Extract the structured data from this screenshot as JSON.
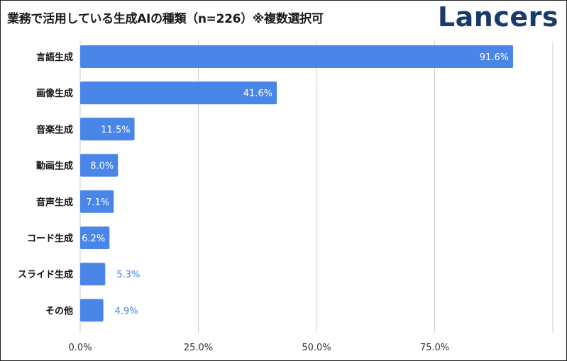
{
  "header": {
    "title": "業務で活用している生成AIの種類（n=226）※複数選択可",
    "logo_text": "Lancers"
  },
  "colors": {
    "bar": "#4a86e8",
    "grid": "#cccccc",
    "label_inside": "#ffffff",
    "label_outside": "#4a86e8",
    "logo": "#1a3a6b"
  },
  "chart_data": {
    "type": "bar",
    "orientation": "horizontal",
    "title": "業務で活用している生成AIの種類（n=226）※複数選択可",
    "categories": [
      "言語生成",
      "画像生成",
      "音楽生成",
      "動画生成",
      "音声生成",
      "コード生成",
      "スライド生成",
      "その他"
    ],
    "values": [
      91.6,
      41.6,
      11.5,
      8.0,
      7.1,
      6.2,
      5.3,
      4.9
    ],
    "data_labels": [
      "91.6%",
      "41.6%",
      "11.5%",
      "8.0%",
      "7.1%",
      "6.2%",
      "5.3%",
      "4.9%"
    ],
    "xlim": [
      0,
      100
    ],
    "xticks": [
      0,
      25,
      50,
      75,
      100
    ],
    "xtick_labels": [
      "0.0%",
      "25.0%",
      "50.0%",
      "75.0%",
      ""
    ],
    "xlabel": "",
    "ylabel": "",
    "grid": true
  }
}
